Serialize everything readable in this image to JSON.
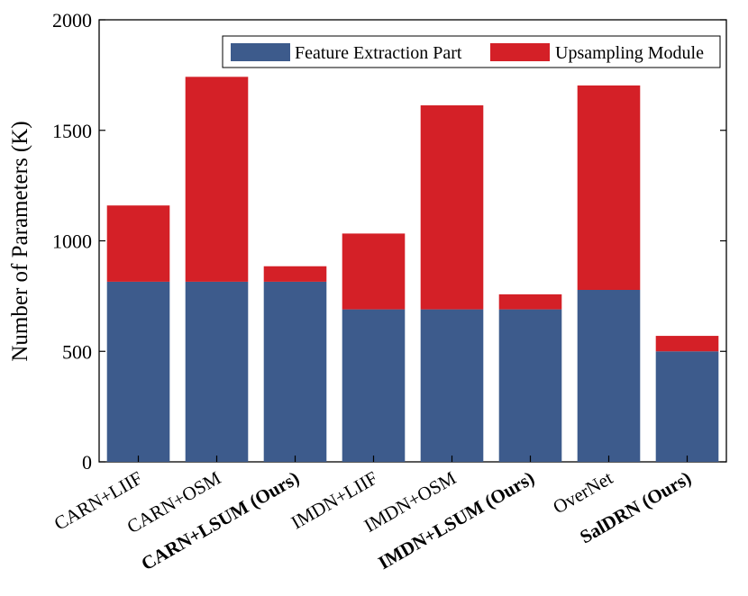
{
  "chart_data": {
    "type": "bar",
    "stacked": true,
    "title": "",
    "xlabel": "",
    "ylabel": "Number of Parameters (K)",
    "ylim": [
      0,
      2000
    ],
    "yticks": [
      0,
      500,
      1000,
      1500,
      2000
    ],
    "categories": [
      "CARN+LIIF",
      "CARN+OSM",
      "CARN+LSUM (Ours)",
      "IMDN+LIIF",
      "IMDN+OSM",
      "IMDN+LSUM (Ours)",
      "OverNet",
      "SalDRN (Ours)"
    ],
    "bold_categories": [
      "CARN+LSUM (Ours)",
      "IMDN+LSUM (Ours)",
      "SalDRN (Ours)"
    ],
    "series": [
      {
        "name": "Feature Extraction Part",
        "color": "#3d5b8c",
        "values": [
          815,
          815,
          815,
          690,
          690,
          690,
          778,
          500
        ]
      },
      {
        "name": "Upsampling Module",
        "color": "#d42027",
        "values": [
          345,
          927,
          70,
          343,
          923,
          68,
          925,
          70
        ]
      }
    ],
    "legend_position": "top-right"
  }
}
